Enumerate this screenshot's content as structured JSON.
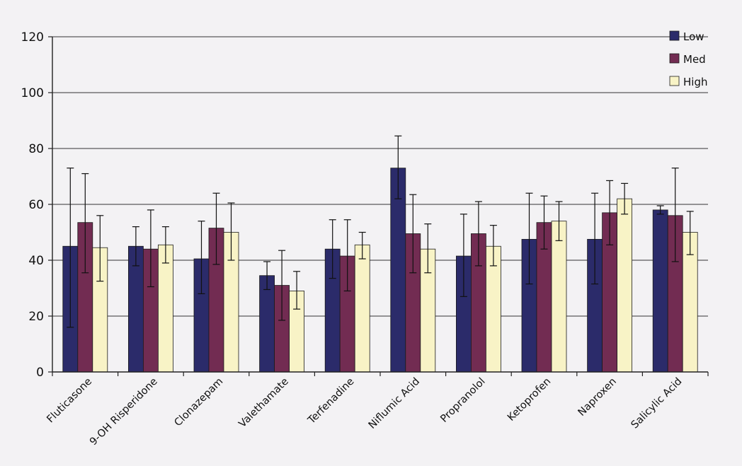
{
  "chart_data": {
    "type": "bar",
    "title": "",
    "xlabel": "",
    "ylabel": "",
    "ylim": [
      0,
      120
    ],
    "yticks": [
      "0",
      "20",
      "40",
      "60",
      "80",
      "100",
      "120"
    ],
    "grid": "horizontal",
    "legend_position": "top-right",
    "error_bars": true,
    "categories": [
      "Fluticasone",
      "9-OH Risperidone",
      "Clonazepam",
      "Valethamate",
      "Terfenadine",
      "Niflumic Acid",
      "Propranolol",
      "Ketoprofen",
      "Naproxen",
      "Salicylic Acid"
    ],
    "series": [
      {
        "name": "Low",
        "color": "#2b2b6a",
        "values": [
          45,
          45,
          40.5,
          34.5,
          44,
          73,
          41.5,
          47.5,
          47.5,
          58
        ],
        "error_low": [
          16,
          38,
          28,
          29.5,
          33.5,
          62,
          27,
          31.5,
          31.5,
          56.5
        ],
        "error_high": [
          73,
          52,
          54,
          39.5,
          54.5,
          84.5,
          56.5,
          64,
          64,
          59.5
        ]
      },
      {
        "name": "Med",
        "color": "#722c52",
        "values": [
          53.5,
          44,
          51.5,
          31,
          41.5,
          49.5,
          49.5,
          53.5,
          57,
          56
        ],
        "error_low": [
          35.5,
          30.5,
          38.5,
          18.5,
          29,
          35.5,
          38,
          44,
          45.5,
          39.5
        ],
        "error_high": [
          71,
          58,
          64,
          43.5,
          54.5,
          63.5,
          61,
          63,
          68.5,
          73
        ]
      },
      {
        "name": "High",
        "color": "#f8f3c6",
        "values": [
          44.5,
          45.5,
          50,
          29,
          45.5,
          44,
          45,
          54,
          62,
          50
        ],
        "error_low": [
          32.5,
          39,
          40,
          22.5,
          40.5,
          35.5,
          38,
          47,
          56.5,
          42
        ],
        "error_high": [
          56,
          52,
          60.5,
          36,
          50,
          53,
          52.5,
          61,
          67.5,
          57.5
        ]
      }
    ]
  }
}
